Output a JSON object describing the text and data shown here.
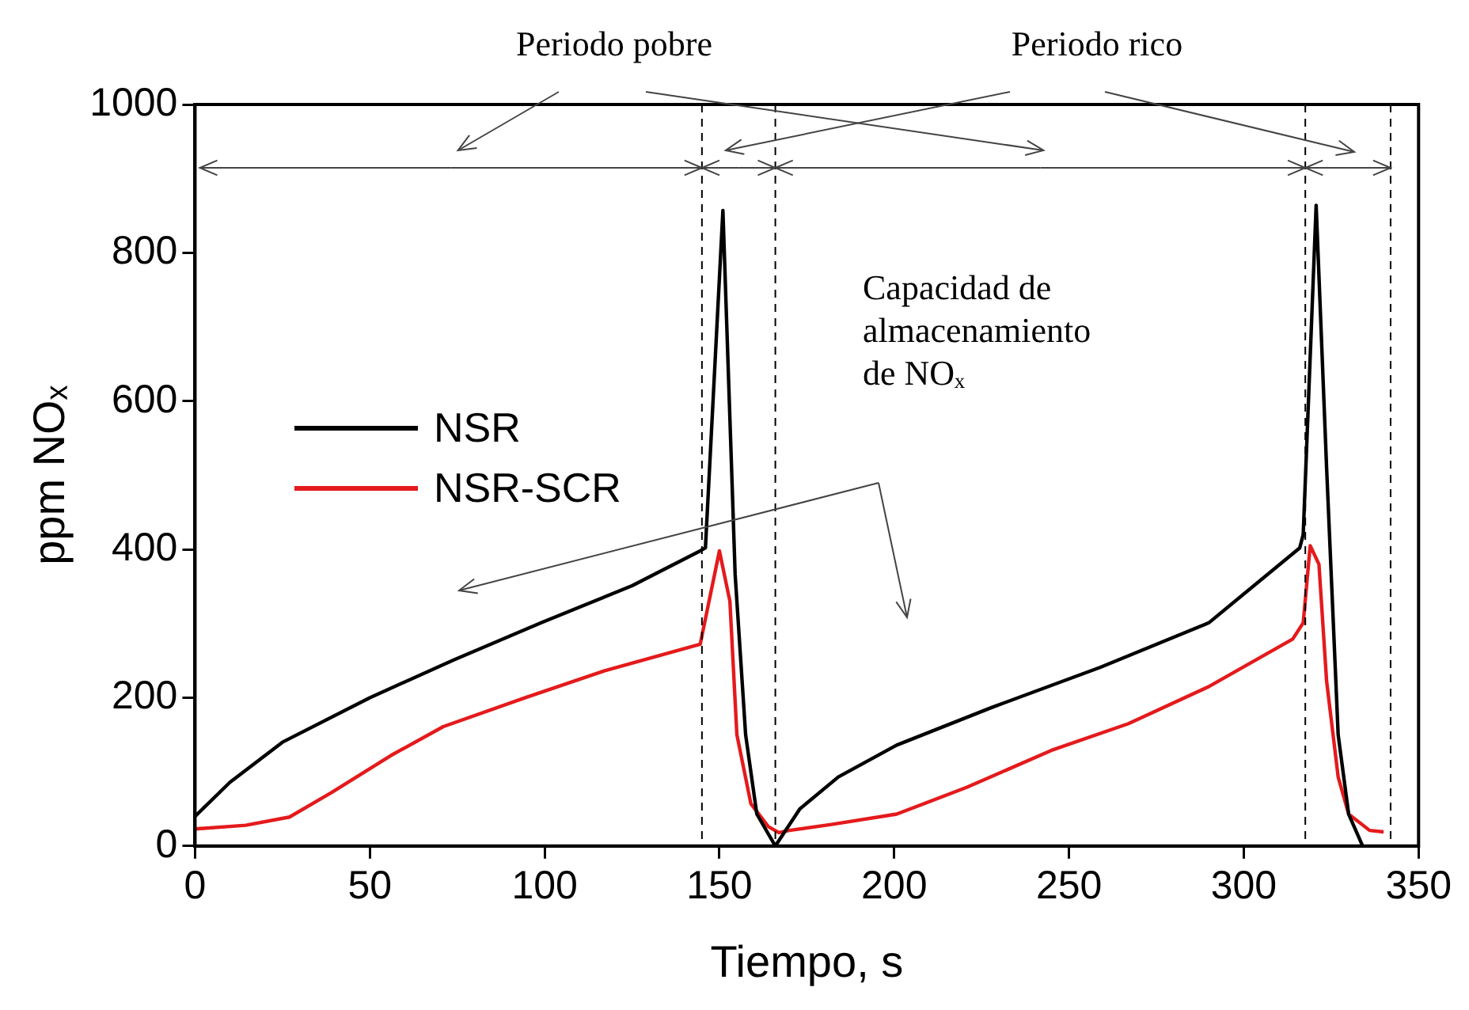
{
  "chart_data": {
    "type": "line",
    "xlabel": "Tiempo, s",
    "ylabel": "ppm NOₓ",
    "xlim": [
      0,
      350
    ],
    "xticks": [
      0,
      50,
      100,
      150,
      200,
      250,
      300,
      350
    ],
    "ylim": [
      0,
      1000
    ],
    "yticks": [
      0,
      200,
      400,
      600,
      800,
      1000
    ],
    "grid": false,
    "legend": "left",
    "marker": "none",
    "line_style": "solid",
    "series": [
      {
        "name": "NSR",
        "color": "#000000",
        "x": [
          0,
          10,
          25,
          50,
          74,
          99,
          125,
          144.5,
          146,
          151,
          154.5,
          157.5,
          160.7,
          166,
          173,
          184,
          200.7,
          228,
          259,
          290,
          316,
          317,
          320.7,
          323.7,
          327,
          330,
          334
        ],
        "values": [
          40,
          86,
          140,
          200,
          251,
          301,
          351,
          398,
          402,
          857,
          366,
          150,
          43,
          0,
          50,
          93,
          136,
          187,
          241,
          301,
          402,
          420,
          864,
          509,
          150,
          43,
          0
        ]
      },
      {
        "name": "NSR-SCR",
        "color": "#e41a1c",
        "x": [
          0,
          14.5,
          27,
          39,
          56,
          71,
          94.5,
          117.6,
          144.5,
          150,
          153,
          155,
          159,
          164,
          167,
          170,
          182,
          200.7,
          220.7,
          245,
          267,
          290,
          314,
          317,
          319,
          321.5,
          323.7,
          327,
          330,
          336,
          340
        ],
        "values": [
          23,
          28,
          39,
          72,
          122,
          161,
          200,
          237,
          272,
          398,
          330,
          150,
          57,
          26,
          18,
          21,
          29,
          43,
          79,
          129,
          165,
          215,
          279,
          301,
          405,
          380,
          222,
          93,
          43,
          21,
          19
        ]
      }
    ],
    "ref_lines": [
      {
        "axis": "x",
        "value": 145,
        "line_style": "dashed",
        "color": "#000000"
      },
      {
        "axis": "x",
        "value": 166,
        "line_style": "dashed",
        "color": "#000000"
      },
      {
        "axis": "x",
        "value": 317.6,
        "line_style": "dashed",
        "color": "#000000"
      },
      {
        "axis": "x",
        "value": 342,
        "line_style": "dashed",
        "color": "#000000"
      }
    ],
    "annotations": [
      "Periodo pobre",
      "Periodo rico",
      "Capacidad de almacenamiento de NOₓ"
    ]
  }
}
